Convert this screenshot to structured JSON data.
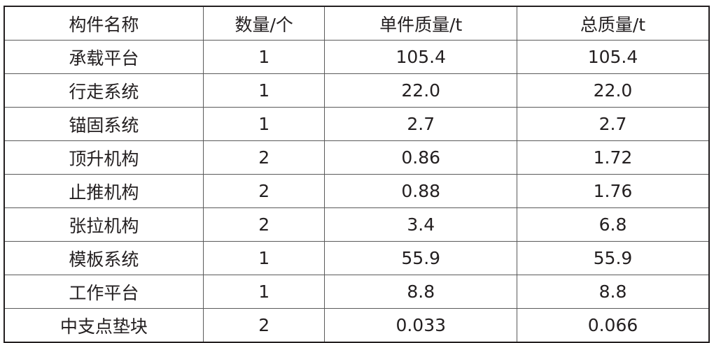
{
  "table": {
    "headers": [
      "构件名称",
      "数量/个",
      "单件质量/t",
      "总质量/t"
    ],
    "rows": [
      [
        "承载平台",
        "1",
        "105.4",
        "105.4"
      ],
      [
        "行走系统",
        "1",
        "22.0",
        "22.0"
      ],
      [
        "锚固系统",
        "1",
        "2.7",
        "2.7"
      ],
      [
        "顶升机构",
        "2",
        "0.86",
        "1.72"
      ],
      [
        "止推机构",
        "2",
        "0.88",
        "1.76"
      ],
      [
        "张拉机构",
        "2",
        "3.4",
        "6.8"
      ],
      [
        "模板系统",
        "1",
        "55.9",
        "55.9"
      ],
      [
        "工作平台",
        "1",
        "8.8",
        "8.8"
      ],
      [
        "中支点垫块",
        "2",
        "0.033",
        "0.066"
      ]
    ]
  }
}
